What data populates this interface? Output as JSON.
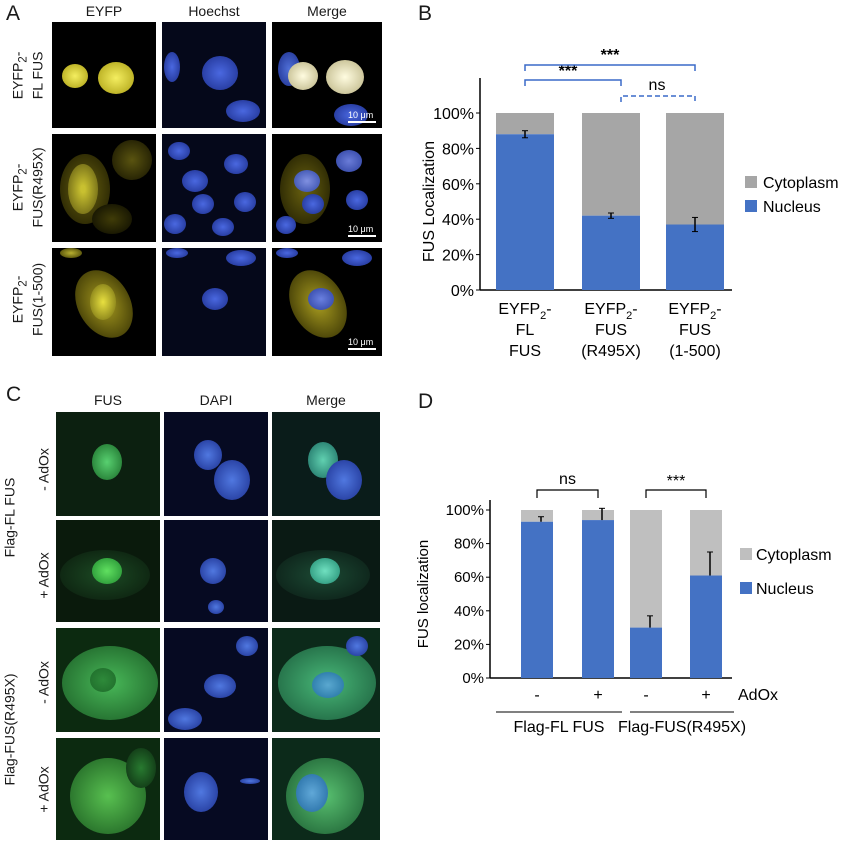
{
  "panels": {
    "a": "A",
    "b": "B",
    "c": "C",
    "d": "D"
  },
  "panelA": {
    "columns": [
      "EYFP",
      "Hoechst",
      "Merge"
    ],
    "rows": [
      {
        "line1": "EYFP",
        "sub": "2",
        "line1_suffix": "-",
        "line2": "FL FUS"
      },
      {
        "line1": "EYFP",
        "sub": "2",
        "line1_suffix": "-",
        "line2": "FUS(R495X)"
      },
      {
        "line1": "EYFP",
        "sub": "2",
        "line1_suffix": "-",
        "line2": "FUS(1-500)"
      }
    ],
    "scale": "10 μm",
    "colors": {
      "eyfp": "#e8e04a",
      "hoechst": "#2d4fc8",
      "merge": "#d8d8c0"
    }
  },
  "panelC": {
    "columns": [
      "FUS",
      "DAPI",
      "Merge"
    ],
    "group_labels": [
      "Flag-FL FUS",
      "Flag-FUS(R495X)"
    ],
    "row_labels": [
      "- AdOx",
      "+ AdOx",
      "- AdOx",
      "+ AdOx"
    ],
    "colors": {
      "fus": "#2fb84a",
      "dapi": "#3a64d8"
    }
  },
  "chart_data": [
    {
      "type": "bar",
      "stacked": true,
      "categories": [
        {
          "l1": "EYFP",
          "sub": "2",
          "l1s": "-",
          "l2": "FL",
          "l3": "FUS"
        },
        {
          "l1": "EYFP",
          "sub": "2",
          "l1s": "-",
          "l2": "FUS",
          "l3": "(R495X)"
        },
        {
          "l1": "EYFP",
          "sub": "2",
          "l1s": "-",
          "l2": "FUS",
          "l3": "(1-500)"
        }
      ],
      "series": [
        {
          "name": "Nucleus",
          "values": [
            88,
            42,
            37
          ],
          "errors": [
            2,
            1.5,
            4
          ],
          "color": "#4472c4"
        },
        {
          "name": "Cytoplasm",
          "values": [
            12,
            58,
            63
          ],
          "color": "#a6a6a6"
        }
      ],
      "ylabel": "FUS Localization",
      "yticks": [
        "0%",
        "20%",
        "40%",
        "60%",
        "80%",
        "100%"
      ],
      "ylim": [
        0,
        100
      ],
      "legend": [
        "Cytoplasm",
        "Nucleus"
      ],
      "legend_position": "right",
      "significance": [
        {
          "from": 0,
          "to": 1,
          "label": "***",
          "style": "solid"
        },
        {
          "from": 1,
          "to": 2,
          "label": "ns",
          "style": "dashed"
        },
        {
          "from": 0,
          "to": 2,
          "label": "***",
          "style": "solid"
        }
      ]
    },
    {
      "type": "bar",
      "stacked": true,
      "categories": [
        "-",
        "+",
        "-",
        "+"
      ],
      "group_labels": [
        "Flag-FL FUS",
        "Flag-FUS(R495X)"
      ],
      "treatment_label": "AdOx",
      "series": [
        {
          "name": "Nucleus",
          "values": [
            93,
            94,
            30,
            61
          ],
          "errors": [
            3,
            7,
            7,
            14
          ],
          "color": "#4472c4"
        },
        {
          "name": "Cytoplasm",
          "values": [
            7,
            6,
            70,
            39
          ],
          "color": "#bfbfbf"
        }
      ],
      "ylabel": "FUS localization",
      "yticks": [
        "0%",
        "20%",
        "40%",
        "60%",
        "80%",
        "100%"
      ],
      "ylim": [
        0,
        100
      ],
      "legend": [
        "Cytoplasm",
        "Nucleus"
      ],
      "legend_position": "right",
      "significance": [
        {
          "from": 0,
          "to": 1,
          "label": "ns"
        },
        {
          "from": 2,
          "to": 3,
          "label": "***"
        }
      ]
    }
  ]
}
